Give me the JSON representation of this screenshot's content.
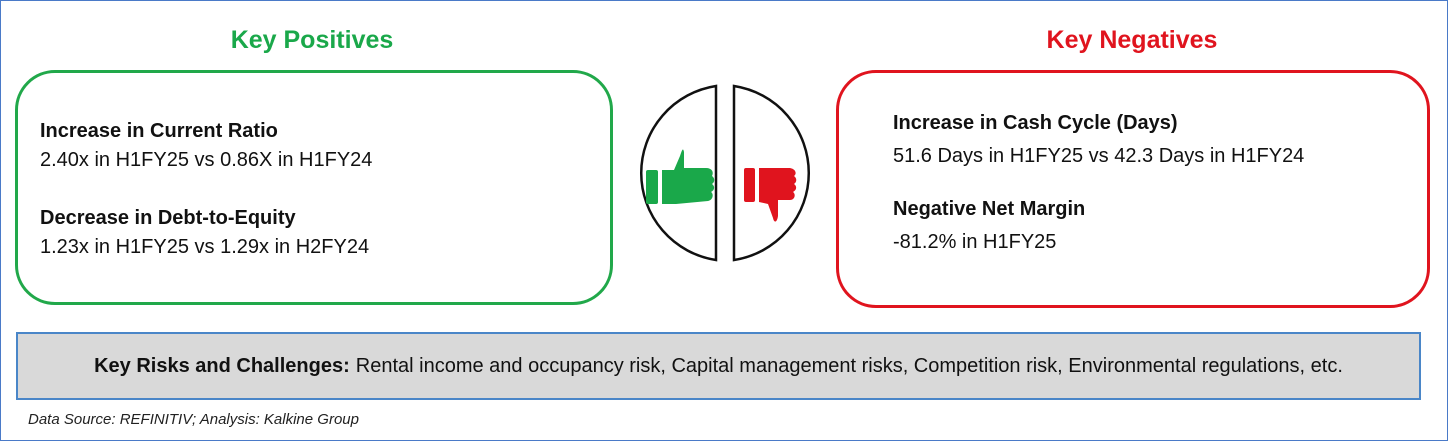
{
  "positives": {
    "heading": "Key Positives",
    "color": "#1aa84a",
    "items": [
      {
        "title": "Increase in Current Ratio",
        "text": "2.40x in H1FY25 vs 0.86X in H1FY24"
      },
      {
        "title": "Decrease in Debt-to-Equity",
        "text": "1.23x in H1FY25 vs 1.29x in H2FY24"
      }
    ]
  },
  "negatives": {
    "heading": "Key Negatives",
    "color": "#e0141e",
    "items": [
      {
        "title": "Increase in Cash Cycle (Days)",
        "text": "51.6 Days in H1FY25 vs 42.3 Days in H1FY24"
      },
      {
        "title": "Negative Net Margin",
        "text": "-81.2% in H1FY25"
      }
    ]
  },
  "icons": {
    "left": "thumbs-up-icon",
    "right": "thumbs-down-icon"
  },
  "risks": {
    "label": "Key Risks and Challenges:",
    "text": "Rental income and occupancy risk, Capital management risks, Competition risk, Environmental regulations, etc."
  },
  "source": "Data Source: REFINITIV; Analysis: Kalkine Group"
}
